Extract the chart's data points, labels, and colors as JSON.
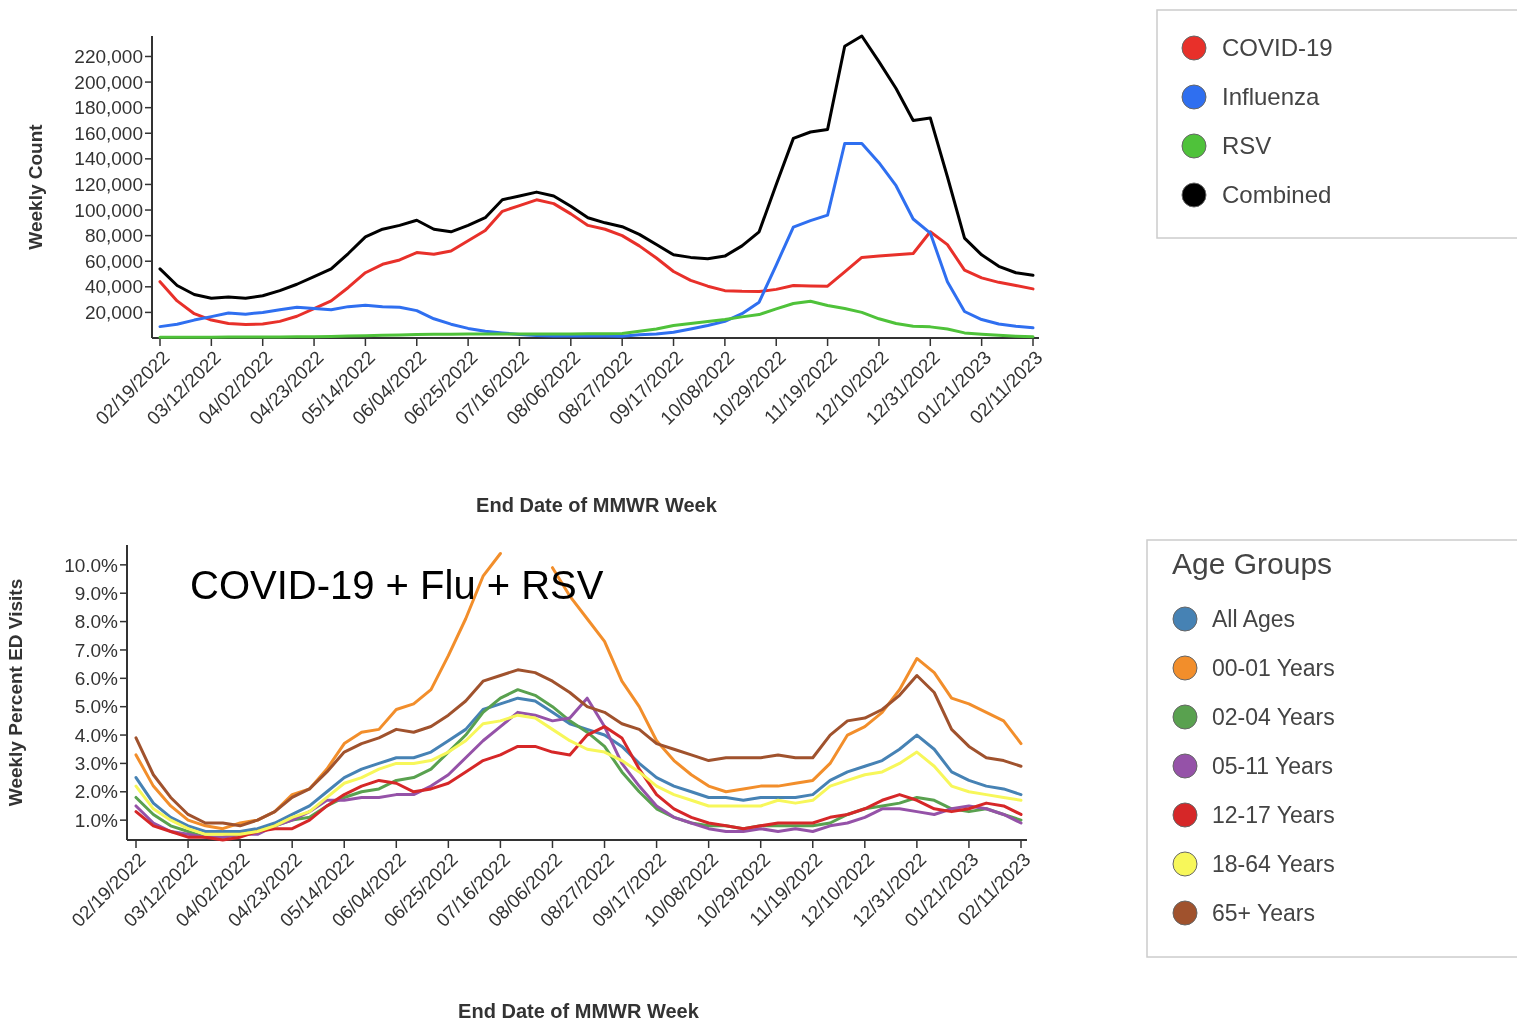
{
  "chart_data": [
    {
      "type": "line",
      "ylabel": "Weekly Count",
      "xlabel": "End Date of MMWR Week",
      "legend": "right",
      "grid": false,
      "categories": [
        "02/19/2022",
        null,
        null,
        "03/12/2022",
        null,
        null,
        "04/02/2022",
        null,
        null,
        "04/23/2022",
        null,
        null,
        "05/14/2022",
        null,
        null,
        "06/04/2022",
        null,
        null,
        "06/25/2022",
        null,
        null,
        "07/16/2022",
        null,
        null,
        "08/06/2022",
        null,
        null,
        "08/27/2022",
        null,
        null,
        "09/17/2022",
        null,
        null,
        "10/08/2022",
        null,
        null,
        "10/29/2022",
        null,
        null,
        "11/19/2022",
        null,
        null,
        "12/10/2022",
        null,
        null,
        "12/31/2022",
        null,
        null,
        "01/21/2023",
        null,
        null,
        "02/11/2023"
      ],
      "ylim": [
        0,
        236000
      ],
      "yticks": [
        {
          "value": 20000,
          "label": "20,000"
        },
        {
          "value": 40000,
          "label": "40,000"
        },
        {
          "value": 60000,
          "label": "60,000"
        },
        {
          "value": 80000,
          "label": "80,000"
        },
        {
          "value": 100000,
          "label": "100,000"
        },
        {
          "value": 120000,
          "label": "120,000"
        },
        {
          "value": 140000,
          "label": "140,000"
        },
        {
          "value": 160000,
          "label": "160,000"
        },
        {
          "value": 180000,
          "label": "180,000"
        },
        {
          "value": 200000,
          "label": "200,000"
        },
        {
          "value": 220000,
          "label": "220,000"
        }
      ],
      "series": [
        {
          "name": "COVID-19",
          "color": "#e8302a",
          "values": [
            44000,
            29000,
            19000,
            14000,
            11400,
            10500,
            11000,
            13000,
            17000,
            23000,
            29000,
            39500,
            51000,
            57600,
            61000,
            66800,
            65400,
            68000,
            76000,
            84000,
            99000,
            103500,
            108000,
            105000,
            97000,
            88000,
            85000,
            80000,
            72000,
            62500,
            52000,
            45000,
            40500,
            37000,
            36500,
            36300,
            38000,
            41000,
            40700,
            40500,
            51600,
            63000,
            64000,
            65000,
            66000,
            83000,
            73000,
            53000,
            47000,
            43500,
            41000,
            38400
          ]
        },
        {
          "name": "Influenza",
          "color": "#2f6ff0",
          "values": [
            8900,
            10800,
            14000,
            16700,
            19500,
            18600,
            20000,
            22000,
            24000,
            23000,
            22000,
            24500,
            25600,
            24500,
            24000,
            21400,
            15000,
            10800,
            7500,
            5200,
            4000,
            2700,
            1900,
            1500,
            1500,
            1500,
            1500,
            1400,
            2500,
            3200,
            4500,
            7000,
            9800,
            13000,
            19000,
            28000,
            57000,
            86700,
            91700,
            96000,
            152000,
            152000,
            137000,
            119000,
            93000,
            82000,
            44000,
            20700,
            14400,
            11000,
            9200,
            8000
          ]
        },
        {
          "name": "RSV",
          "color": "#4fc23a",
          "values": [
            500,
            500,
            600,
            600,
            700,
            700,
            800,
            800,
            900,
            1000,
            1200,
            1500,
            1800,
            2100,
            2400,
            2700,
            2900,
            3000,
            3100,
            3200,
            3200,
            3200,
            3200,
            3200,
            3200,
            3300,
            3400,
            3500,
            5300,
            7000,
            9800,
            11300,
            12900,
            14400,
            16500,
            18300,
            22800,
            27000,
            28700,
            25400,
            23000,
            20000,
            15000,
            11300,
            9200,
            8700,
            7000,
            4000,
            3000,
            2200,
            1400,
            1000
          ]
        },
        {
          "name": "Combined",
          "color": "#000000",
          "values": [
            54000,
            41000,
            34000,
            31000,
            32000,
            31000,
            33000,
            37000,
            42000,
            48000,
            54000,
            66000,
            79000,
            85000,
            88000,
            92000,
            85000,
            83000,
            88000,
            94000,
            108000,
            111000,
            114000,
            111000,
            103000,
            94000,
            90000,
            87000,
            81000,
            73000,
            65000,
            63000,
            62000,
            64000,
            72000,
            83000,
            120000,
            156000,
            161000,
            163000,
            228000,
            236000,
            216000,
            195000,
            170000,
            172000,
            126000,
            78000,
            65000,
            56000,
            51000,
            49000
          ]
        }
      ]
    },
    {
      "type": "line",
      "ylabel": "Weekly Percent ED Visits",
      "xlabel": "End Date of MMWR Week",
      "legend": "right",
      "legend_title": "Age Groups",
      "grid": false,
      "annotations": [
        "COVID-19 + Flu + RSV"
      ],
      "categories": [
        "02/19/2022",
        null,
        null,
        "03/12/2022",
        null,
        null,
        "04/02/2022",
        null,
        null,
        "04/23/2022",
        null,
        null,
        "05/14/2022",
        null,
        null,
        "06/04/2022",
        null,
        null,
        "06/25/2022",
        null,
        null,
        "07/16/2022",
        null,
        null,
        "08/06/2022",
        null,
        null,
        "08/27/2022",
        null,
        null,
        "09/17/2022",
        null,
        null,
        "10/08/2022",
        null,
        null,
        "10/29/2022",
        null,
        null,
        "11/19/2022",
        null,
        null,
        "12/10/2022",
        null,
        null,
        "12/31/2022",
        null,
        null,
        "01/21/2023",
        null,
        null,
        "02/11/2023"
      ],
      "ylim": [
        0.3,
        10.7
      ],
      "yticks": [
        {
          "value": 1,
          "label": "1.0%"
        },
        {
          "value": 2,
          "label": "2.0%"
        },
        {
          "value": 3,
          "label": "3.0%"
        },
        {
          "value": 4,
          "label": "4.0%"
        },
        {
          "value": 5,
          "label": "5.0%"
        },
        {
          "value": 6,
          "label": "6.0%"
        },
        {
          "value": 7,
          "label": "7.0%"
        },
        {
          "value": 8,
          "label": "8.0%"
        },
        {
          "value": 9,
          "label": "9.0%"
        },
        {
          "value": 10,
          "label": "10.0%"
        }
      ],
      "series": [
        {
          "name": "All Ages",
          "color": "#4682b4",
          "values": [
            2.5,
            1.6,
            1.1,
            0.8,
            0.6,
            0.6,
            0.6,
            0.7,
            0.9,
            1.2,
            1.5,
            2.0,
            2.5,
            2.8,
            3.0,
            3.2,
            3.2,
            3.4,
            3.8,
            4.2,
            4.9,
            5.1,
            5.3,
            5.2,
            4.8,
            4.4,
            4.2,
            4.0,
            3.6,
            3.0,
            2.5,
            2.2,
            2.0,
            1.8,
            1.8,
            1.7,
            1.8,
            1.8,
            1.8,
            1.9,
            2.4,
            2.7,
            2.9,
            3.1,
            3.5,
            4.0,
            3.5,
            2.7,
            2.4,
            2.2,
            2.1,
            1.9
          ]
        },
        {
          "name": "00-01 Years",
          "color": "#f28e2b",
          "values": [
            3.3,
            2.2,
            1.5,
            1.0,
            0.8,
            0.7,
            0.9,
            1.0,
            1.3,
            1.9,
            2.1,
            2.8,
            3.7,
            4.1,
            4.2,
            4.9,
            5.1,
            5.6,
            6.8,
            8.1,
            9.6,
            10.4,
            null,
            null,
            9.9,
            8.9,
            8.1,
            7.3,
            5.9,
            5.0,
            3.8,
            3.1,
            2.6,
            2.2,
            2.0,
            2.1,
            2.2,
            2.2,
            2.3,
            2.4,
            3.0,
            4.0,
            4.3,
            4.8,
            5.6,
            6.7,
            6.2,
            5.3,
            5.1,
            4.8,
            4.5,
            3.7
          ]
        },
        {
          "name": "02-04 Years",
          "color": "#59a14f",
          "values": [
            1.8,
            1.2,
            0.8,
            0.6,
            0.4,
            0.4,
            0.5,
            0.6,
            0.8,
            1.0,
            1.1,
            1.5,
            1.8,
            2.0,
            2.1,
            2.4,
            2.5,
            2.8,
            3.4,
            4.0,
            4.8,
            5.3,
            5.6,
            5.4,
            5.0,
            4.5,
            4.1,
            3.6,
            2.7,
            2.0,
            1.4,
            1.1,
            0.9,
            0.8,
            0.8,
            0.7,
            0.8,
            0.8,
            0.8,
            0.8,
            0.9,
            1.2,
            1.4,
            1.5,
            1.6,
            1.8,
            1.7,
            1.4,
            1.3,
            1.4,
            1.2,
            1.0
          ]
        },
        {
          "name": "05-11 Years",
          "color": "#9552a8",
          "values": [
            1.5,
            0.9,
            0.6,
            0.5,
            0.4,
            0.4,
            0.5,
            0.5,
            0.8,
            1.0,
            1.3,
            1.7,
            1.7,
            1.8,
            1.8,
            1.9,
            1.9,
            2.2,
            2.6,
            3.2,
            3.8,
            4.3,
            4.8,
            4.7,
            4.5,
            4.6,
            5.3,
            4.3,
            3.0,
            2.2,
            1.5,
            1.1,
            0.9,
            0.7,
            0.6,
            0.6,
            0.7,
            0.6,
            0.7,
            0.6,
            0.8,
            0.9,
            1.1,
            1.4,
            1.4,
            1.3,
            1.2,
            1.4,
            1.5,
            1.4,
            1.2,
            0.9
          ]
        },
        {
          "name": "12-17 Years",
          "color": "#d62728",
          "values": [
            1.3,
            0.8,
            0.6,
            0.4,
            0.4,
            0.3,
            0.4,
            0.6,
            0.7,
            0.7,
            1.0,
            1.5,
            1.9,
            2.2,
            2.4,
            2.3,
            2.0,
            2.1,
            2.3,
            2.7,
            3.1,
            3.3,
            3.6,
            3.6,
            3.4,
            3.3,
            4.0,
            4.3,
            3.9,
            2.8,
            1.9,
            1.4,
            1.1,
            0.9,
            0.8,
            0.7,
            0.8,
            0.9,
            0.9,
            0.9,
            1.1,
            1.2,
            1.4,
            1.7,
            1.9,
            1.7,
            1.4,
            1.3,
            1.4,
            1.6,
            1.5,
            1.2
          ]
        },
        {
          "name": "18-64 Years",
          "color": "#f7f75a",
          "values": [
            2.2,
            1.4,
            1.0,
            0.7,
            0.5,
            0.5,
            0.5,
            0.6,
            0.8,
            1.1,
            1.3,
            1.8,
            2.3,
            2.5,
            2.8,
            3.0,
            3.0,
            3.1,
            3.4,
            3.8,
            4.4,
            4.5,
            4.7,
            4.6,
            4.2,
            3.8,
            3.5,
            3.4,
            3.1,
            2.7,
            2.2,
            1.9,
            1.7,
            1.5,
            1.5,
            1.5,
            1.5,
            1.7,
            1.6,
            1.7,
            2.2,
            2.4,
            2.6,
            2.7,
            3.0,
            3.4,
            2.9,
            2.2,
            2.0,
            1.9,
            1.8,
            1.7
          ]
        },
        {
          "name": "65+ Years",
          "color": "#a0522d",
          "values": [
            3.9,
            2.6,
            1.8,
            1.2,
            0.9,
            0.9,
            0.8,
            1.0,
            1.3,
            1.8,
            2.1,
            2.7,
            3.4,
            3.7,
            3.9,
            4.2,
            4.1,
            4.3,
            4.7,
            5.2,
            5.9,
            6.1,
            6.3,
            6.2,
            5.9,
            5.5,
            5.0,
            4.8,
            4.4,
            4.2,
            3.7,
            3.5,
            3.3,
            3.1,
            3.2,
            3.2,
            3.2,
            3.3,
            3.2,
            3.2,
            4.0,
            4.5,
            4.6,
            4.9,
            5.4,
            6.1,
            5.5,
            4.2,
            3.6,
            3.2,
            3.1,
            2.9
          ]
        }
      ]
    }
  ]
}
